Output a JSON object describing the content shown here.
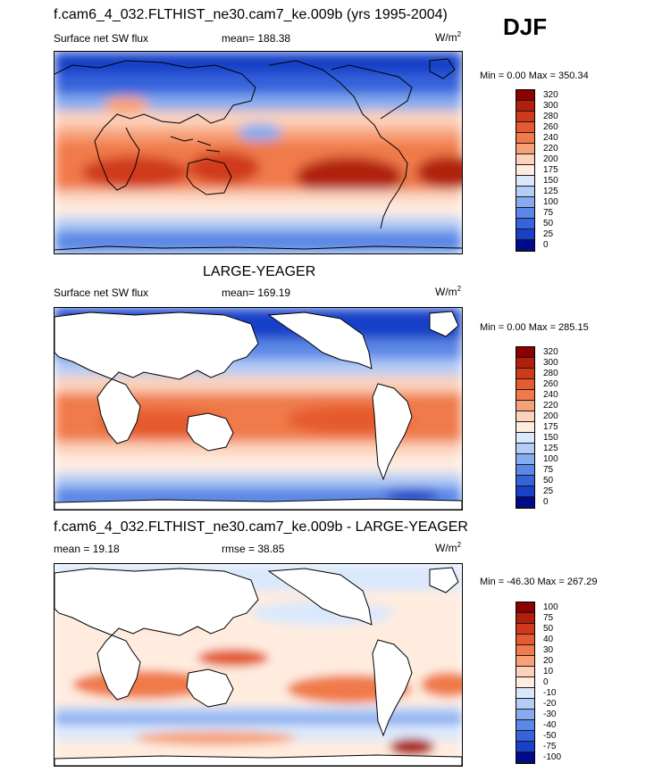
{
  "season": "DJF",
  "panels": [
    {
      "title": "f.cam6_4_032.FLTHIST_ne30.cam7_ke.009b (yrs 1995-2004)",
      "variable": "Surface net SW flux",
      "stat": "mean=  188.38",
      "units_base": "W/m",
      "units_exp": "2",
      "minmax": "Min =   0.00 Max = 350.34",
      "land_masked": false,
      "colorbar": [
        "320",
        "300",
        "280",
        "260",
        "240",
        "220",
        "200",
        "175",
        "150",
        "125",
        "100",
        "75",
        "50",
        "25",
        "0"
      ],
      "colors": [
        "#8b0000",
        "#b0200c",
        "#cf3a1c",
        "#e55a2f",
        "#f07a4a",
        "#f7a178",
        "#fcd2bb",
        "#ffecdf",
        "#dbe8fb",
        "#b3cdf6",
        "#86acef",
        "#5b88e6",
        "#3563db",
        "#1940c8",
        "#000a8c"
      ]
    },
    {
      "title": "LARGE-YEAGER",
      "variable": "Surface net SW flux",
      "stat": "mean=  169.19",
      "units_base": "W/m",
      "units_exp": "2",
      "minmax": "Min =   0.00 Max = 285.15",
      "land_masked": true,
      "colorbar": [
        "320",
        "300",
        "280",
        "260",
        "240",
        "220",
        "200",
        "175",
        "150",
        "125",
        "100",
        "75",
        "50",
        "25",
        "0"
      ],
      "colors": [
        "#8b0000",
        "#b0200c",
        "#cf3a1c",
        "#e55a2f",
        "#f07a4a",
        "#f7a178",
        "#fcd2bb",
        "#ffecdf",
        "#dbe8fb",
        "#b3cdf6",
        "#86acef",
        "#5b88e6",
        "#3563db",
        "#1940c8",
        "#000a8c"
      ]
    },
    {
      "title": "f.cam6_4_032.FLTHIST_ne30.cam7_ke.009b - LARGE-YEAGER",
      "stat_left": "mean =  19.18",
      "stat": "rmse =  38.85",
      "units_base": "W/m",
      "units_exp": "2",
      "minmax": "Min = -46.30 Max = 267.29",
      "land_masked": true,
      "colorbar": [
        "100",
        "75",
        "50",
        "40",
        "30",
        "20",
        "10",
        "0",
        "-10",
        "-20",
        "-30",
        "-40",
        "-50",
        "-75",
        "-100"
      ],
      "colors": [
        "#8b0000",
        "#b0200c",
        "#cf3a1c",
        "#e55a2f",
        "#f07a4a",
        "#f7a178",
        "#fcd2bb",
        "#ffecdf",
        "#dbe8fb",
        "#b3cdf6",
        "#86acef",
        "#5b88e6",
        "#3563db",
        "#1940c8",
        "#000a8c"
      ]
    }
  ]
}
